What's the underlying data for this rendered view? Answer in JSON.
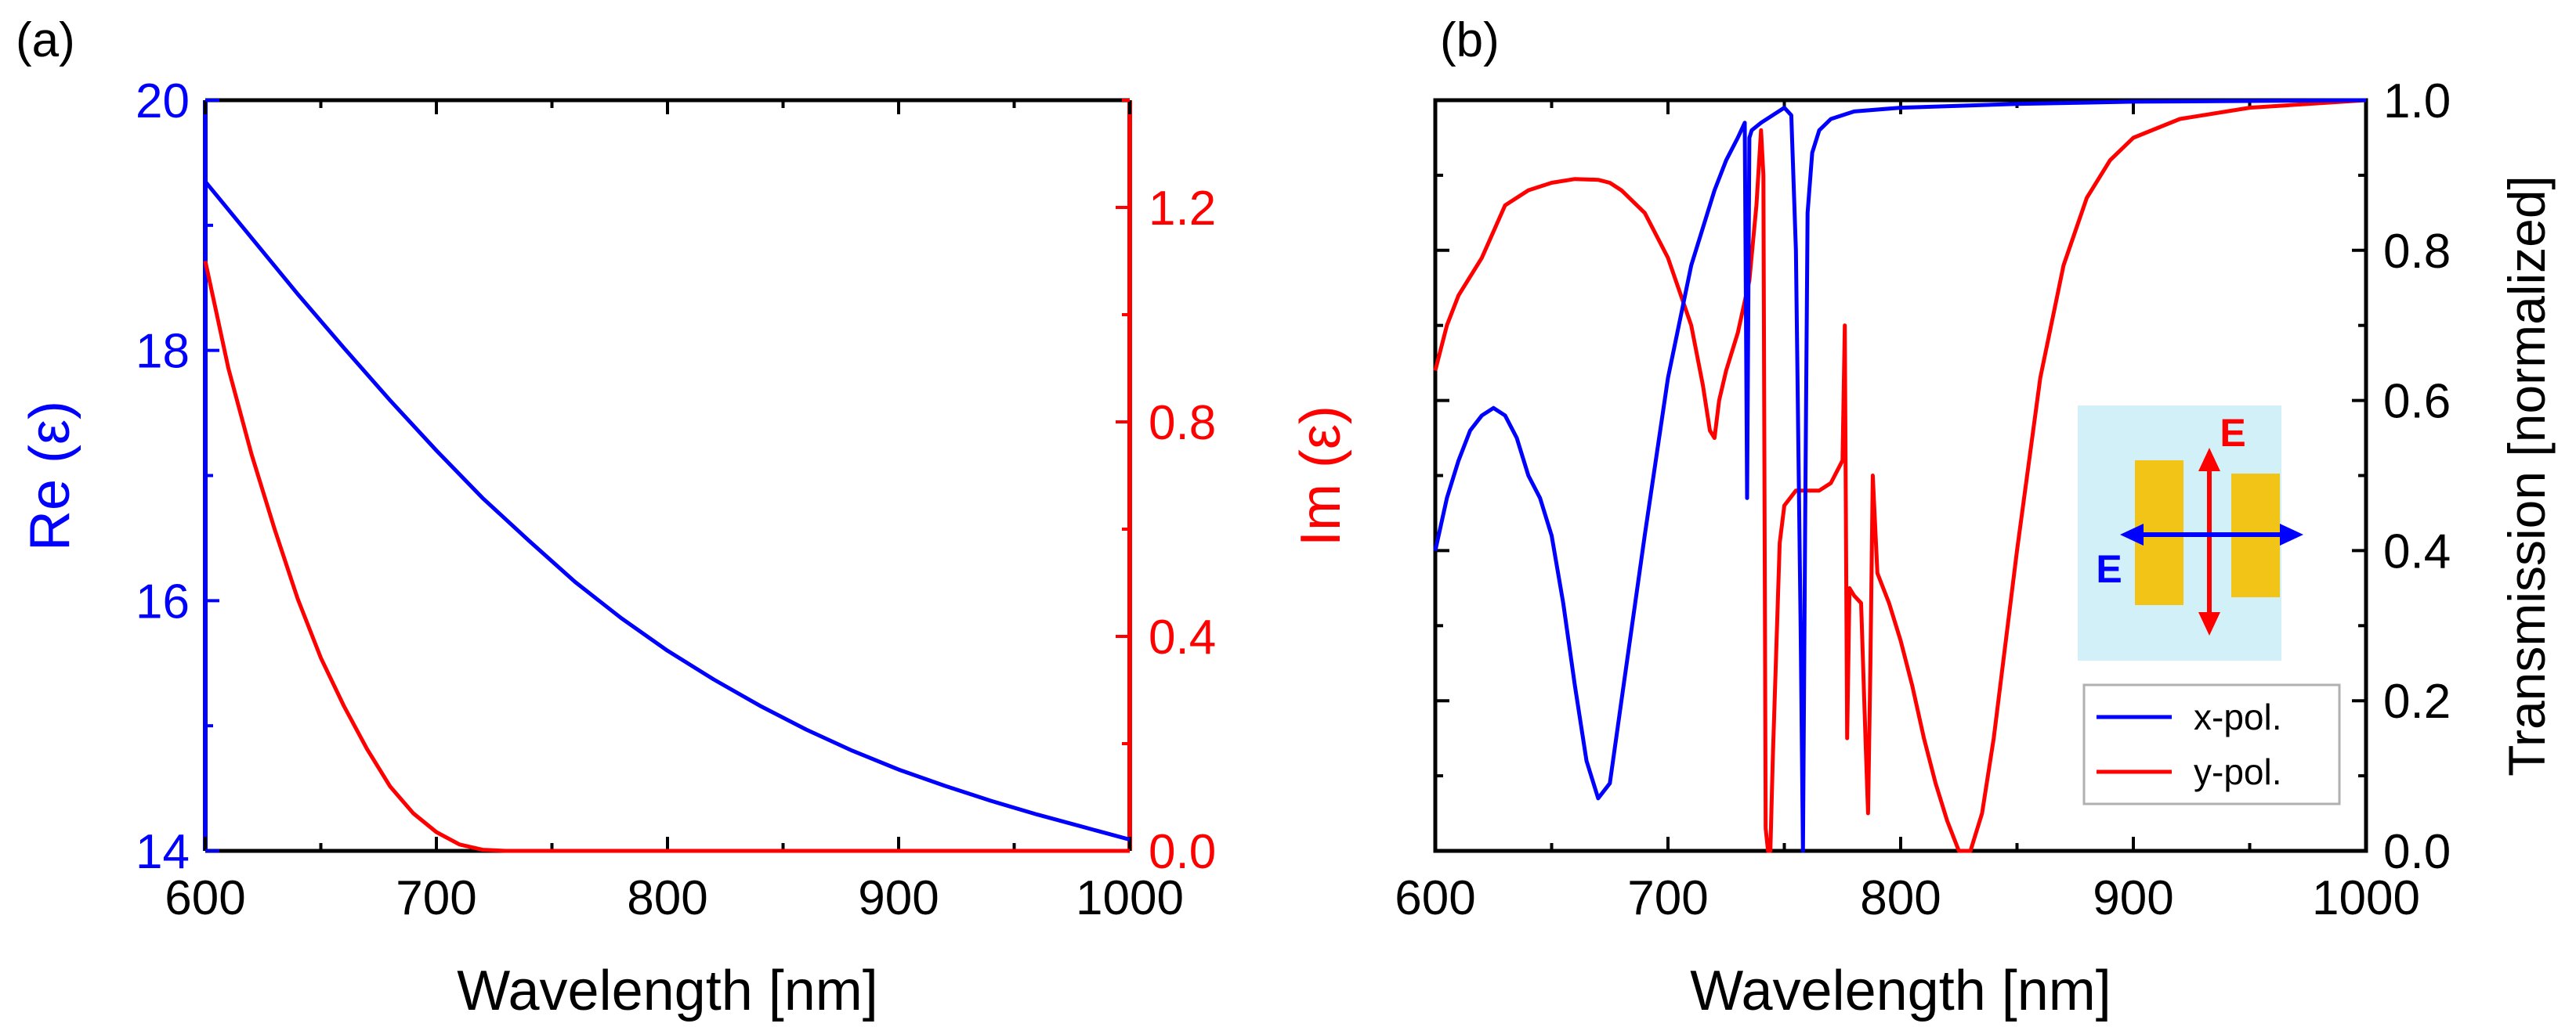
{
  "panel_labels": [
    "(a)",
    "(b)"
  ],
  "colors": {
    "blue": "#0000ff",
    "red": "#ff0000",
    "black": "#000000",
    "inset_bg": "#d2f0f8",
    "inset_rod": "#f2c417"
  },
  "chart_data": [
    {
      "type": "line",
      "panel": "(a)",
      "xlabel": "Wavelength [nm]",
      "ylabel_left": "Re (ε)",
      "ylabel_right": "Im (ε)",
      "xlim": [
        600,
        1000
      ],
      "ylim_left": [
        14,
        20
      ],
      "ylim_right": [
        0,
        1.4
      ],
      "xticks": [
        "600",
        "700",
        "800",
        "900",
        "1000"
      ],
      "yticks_left": [
        "14",
        "16",
        "18",
        "20"
      ],
      "yticks_right": [
        "0.0",
        "0.4",
        "0.8",
        "1.2"
      ],
      "series": [
        {
          "name": "Re (ε)",
          "axis": "left",
          "color": "#0000ff",
          "x": [
            600,
            620,
            640,
            660,
            680,
            700,
            720,
            740,
            760,
            780,
            800,
            820,
            840,
            860,
            880,
            900,
            920,
            940,
            960,
            980,
            1000
          ],
          "y": [
            19.35,
            18.9,
            18.45,
            18.02,
            17.6,
            17.2,
            16.82,
            16.48,
            16.15,
            15.86,
            15.6,
            15.37,
            15.16,
            14.97,
            14.8,
            14.65,
            14.52,
            14.4,
            14.29,
            14.19,
            14.09
          ]
        },
        {
          "name": "Im (ε)",
          "axis": "right",
          "color": "#ff0000",
          "x": [
            600,
            605,
            610,
            620,
            630,
            640,
            650,
            660,
            670,
            680,
            690,
            700,
            710,
            720,
            730,
            800,
            900,
            1000
          ],
          "y": [
            1.1,
            1.0,
            0.9,
            0.74,
            0.6,
            0.47,
            0.36,
            0.27,
            0.19,
            0.12,
            0.07,
            0.035,
            0.012,
            0.002,
            0.0,
            0.0,
            0.0,
            0.0
          ]
        }
      ]
    },
    {
      "type": "line",
      "panel": "(b)",
      "xlabel": "Wavelength [nm]",
      "ylabel": "Transmission [normalized]",
      "xlim": [
        600,
        1000
      ],
      "ylim": [
        0,
        1
      ],
      "xticks": [
        "600",
        "700",
        "800",
        "900",
        "1000"
      ],
      "yticks": [
        "0.0",
        "0.2",
        "0.4",
        "0.6",
        "0.8",
        "1.0"
      ],
      "legend": {
        "position": "bottom-right",
        "entries": [
          "x-pol.",
          "y-pol."
        ]
      },
      "inset": {
        "label_vertical": "E",
        "label_horizontal": "E"
      },
      "series": [
        {
          "name": "x-pol.",
          "color": "#0000ff",
          "x": [
            600,
            605,
            610,
            615,
            620,
            625,
            630,
            635,
            640,
            645,
            650,
            655,
            660,
            665,
            670,
            675,
            680,
            690,
            700,
            710,
            720,
            725,
            730,
            733,
            734,
            735,
            736,
            740,
            745,
            750,
            753,
            755,
            757,
            758,
            759,
            760,
            762,
            765,
            770,
            780,
            800,
            850,
            900,
            1000
          ],
          "y": [
            0.4,
            0.47,
            0.52,
            0.56,
            0.58,
            0.59,
            0.58,
            0.55,
            0.5,
            0.47,
            0.42,
            0.33,
            0.22,
            0.12,
            0.07,
            0.09,
            0.2,
            0.42,
            0.63,
            0.78,
            0.88,
            0.92,
            0.95,
            0.97,
            0.47,
            0.95,
            0.96,
            0.97,
            0.98,
            0.99,
            0.98,
            0.8,
            0.3,
            0.0,
            0.45,
            0.85,
            0.93,
            0.96,
            0.975,
            0.985,
            0.99,
            0.995,
            0.998,
            1.0
          ]
        },
        {
          "name": "y-pol.",
          "color": "#ff0000",
          "x": [
            600,
            605,
            610,
            620,
            630,
            640,
            650,
            660,
            670,
            675,
            680,
            690,
            700,
            710,
            715,
            718,
            720,
            722,
            725,
            730,
            735,
            738,
            740,
            741,
            742,
            743,
            744,
            745,
            748,
            750,
            755,
            760,
            765,
            770,
            775,
            776,
            777,
            778,
            780,
            783,
            785,
            786,
            787,
            788,
            790,
            795,
            800,
            805,
            810,
            815,
            820,
            825,
            830,
            835,
            840,
            850,
            860,
            870,
            880,
            890,
            900,
            920,
            950,
            1000
          ],
          "y": [
            0.64,
            0.7,
            0.74,
            0.79,
            0.86,
            0.88,
            0.89,
            0.895,
            0.894,
            0.89,
            0.88,
            0.85,
            0.79,
            0.7,
            0.62,
            0.56,
            0.55,
            0.6,
            0.64,
            0.69,
            0.76,
            0.86,
            0.96,
            0.9,
            0.03,
            0.0,
            0.0,
            0.12,
            0.41,
            0.46,
            0.48,
            0.48,
            0.48,
            0.49,
            0.52,
            0.7,
            0.15,
            0.35,
            0.34,
            0.33,
            0.14,
            0.05,
            0.25,
            0.5,
            0.37,
            0.33,
            0.28,
            0.22,
            0.15,
            0.09,
            0.04,
            0.0,
            0.0,
            0.05,
            0.15,
            0.4,
            0.63,
            0.78,
            0.87,
            0.92,
            0.95,
            0.975,
            0.99,
            1.0
          ]
        }
      ]
    }
  ]
}
